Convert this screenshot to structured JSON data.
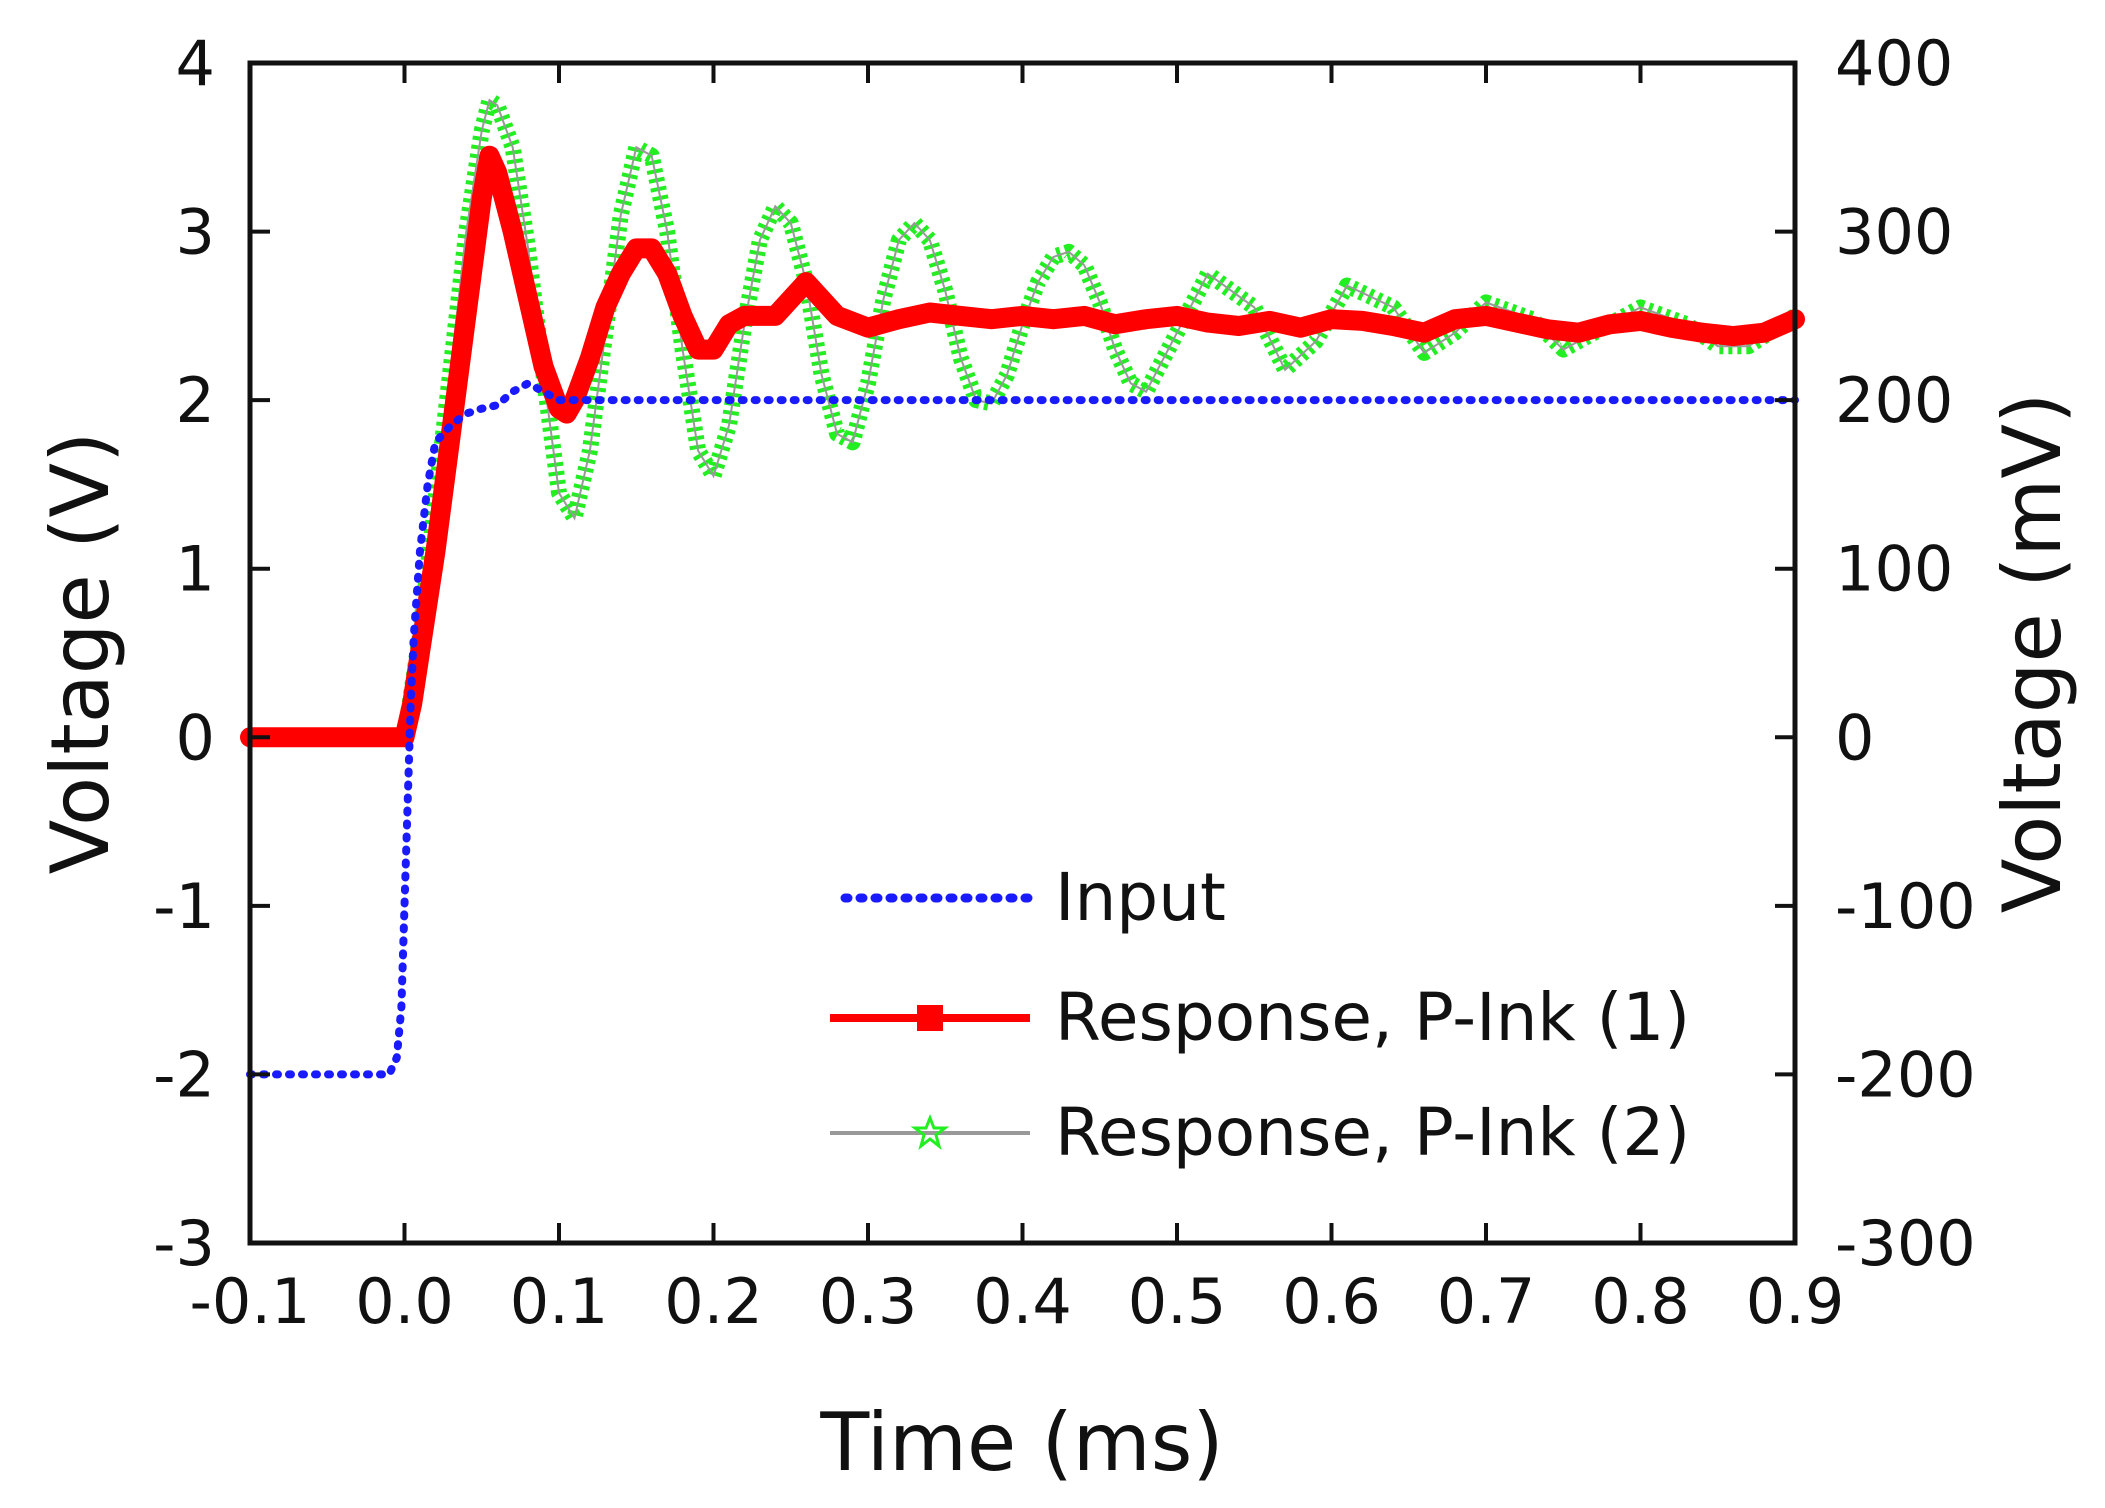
{
  "chart_data": {
    "type": "line",
    "title": "",
    "xlabel": "Time (ms)",
    "ylabel": "Voltage (V)",
    "y2label": "Voltage (mV)",
    "xlim": [
      -0.1,
      0.9
    ],
    "ylim": [
      -3,
      4
    ],
    "y2lim": [
      -300,
      400
    ],
    "xticks": [
      "-0.1",
      "0.0",
      "0.1",
      "0.2",
      "0.3",
      "0.4",
      "0.5",
      "0.6",
      "0.7",
      "0.8",
      "0.9"
    ],
    "yticks": [
      "-3",
      "-2",
      "-1",
      "0",
      "1",
      "2",
      "3",
      "4"
    ],
    "y2ticks": [
      "-300",
      "-200",
      "-100",
      "0",
      "100",
      "200",
      "300",
      "400"
    ],
    "legend_position": "bottom-right",
    "grid": false,
    "colors": {
      "input": "#1a1aff",
      "response1": "#ff0000",
      "response2": "#22ee22",
      "response2_line": "#999999",
      "axes": "#111111"
    },
    "series": [
      {
        "name": "Input",
        "axis": "left",
        "style": "dotted",
        "x": [
          -0.1,
          -0.05,
          -0.01,
          -0.005,
          -0.002,
          0.0,
          0.002,
          0.004,
          0.006,
          0.01,
          0.015,
          0.02,
          0.03,
          0.04,
          0.05,
          0.06,
          0.07,
          0.08,
          0.1,
          0.15,
          0.2,
          0.3,
          0.4,
          0.5,
          0.6,
          0.7,
          0.8,
          0.9
        ],
        "y": [
          -2.0,
          -2.0,
          -2.0,
          -1.9,
          -1.6,
          -1.0,
          -0.4,
          0.2,
          0.6,
          1.1,
          1.5,
          1.75,
          1.85,
          1.92,
          1.95,
          1.97,
          2.05,
          2.1,
          2.0,
          2.0,
          2.0,
          2.0,
          2.0,
          2.0,
          2.0,
          2.0,
          2.0,
          2.0
        ]
      },
      {
        "name": "Response, P-Ink (1)",
        "axis": "right",
        "marker": "square",
        "x": [
          -0.1,
          -0.05,
          0.0,
          0.005,
          0.01,
          0.02,
          0.03,
          0.04,
          0.05,
          0.055,
          0.06,
          0.07,
          0.08,
          0.09,
          0.1,
          0.105,
          0.11,
          0.12,
          0.13,
          0.14,
          0.15,
          0.16,
          0.17,
          0.18,
          0.19,
          0.2,
          0.21,
          0.22,
          0.24,
          0.26,
          0.28,
          0.3,
          0.32,
          0.34,
          0.36,
          0.38,
          0.4,
          0.42,
          0.44,
          0.46,
          0.48,
          0.5,
          0.52,
          0.54,
          0.56,
          0.58,
          0.6,
          0.62,
          0.64,
          0.66,
          0.68,
          0.7,
          0.72,
          0.74,
          0.76,
          0.78,
          0.8,
          0.82,
          0.84,
          0.86,
          0.88,
          0.9
        ],
        "y": [
          0,
          0,
          0,
          20,
          50,
          110,
          180,
          250,
          320,
          345,
          335,
          300,
          260,
          220,
          195,
          192,
          200,
          225,
          255,
          275,
          290,
          290,
          275,
          250,
          230,
          230,
          245,
          250,
          250,
          270,
          250,
          243,
          248,
          252,
          250,
          248,
          250,
          248,
          250,
          245,
          248,
          250,
          246,
          244,
          247,
          243,
          248,
          247,
          244,
          240,
          248,
          250,
          246,
          242,
          240,
          245,
          247,
          243,
          240,
          238,
          240,
          248
        ]
      },
      {
        "name": "Response, P-Ink (2)",
        "axis": "right",
        "marker": "star",
        "x": [
          -0.1,
          -0.05,
          0.0,
          0.01,
          0.02,
          0.03,
          0.04,
          0.05,
          0.055,
          0.06,
          0.07,
          0.08,
          0.09,
          0.1,
          0.11,
          0.12,
          0.13,
          0.14,
          0.15,
          0.16,
          0.17,
          0.18,
          0.19,
          0.2,
          0.21,
          0.22,
          0.23,
          0.24,
          0.25,
          0.26,
          0.27,
          0.28,
          0.29,
          0.3,
          0.31,
          0.32,
          0.33,
          0.34,
          0.35,
          0.36,
          0.37,
          0.38,
          0.39,
          0.4,
          0.41,
          0.42,
          0.43,
          0.44,
          0.45,
          0.46,
          0.47,
          0.48,
          0.5,
          0.52,
          0.55,
          0.57,
          0.59,
          0.61,
          0.64,
          0.66,
          0.68,
          0.7,
          0.73,
          0.75,
          0.77,
          0.8,
          0.83,
          0.85,
          0.87,
          0.9
        ],
        "y": [
          0,
          0,
          0,
          60,
          140,
          220,
          300,
          360,
          378,
          375,
          350,
          290,
          215,
          145,
          130,
          170,
          240,
          310,
          350,
          345,
          300,
          230,
          170,
          155,
          185,
          245,
          295,
          315,
          305,
          270,
          215,
          180,
          175,
          210,
          260,
          295,
          305,
          295,
          265,
          225,
          200,
          198,
          215,
          245,
          270,
          285,
          288,
          280,
          258,
          230,
          210,
          205,
          240,
          275,
          255,
          218,
          235,
          268,
          255,
          228,
          240,
          258,
          248,
          230,
          240,
          255,
          245,
          232,
          232,
          250
        ]
      }
    ]
  }
}
